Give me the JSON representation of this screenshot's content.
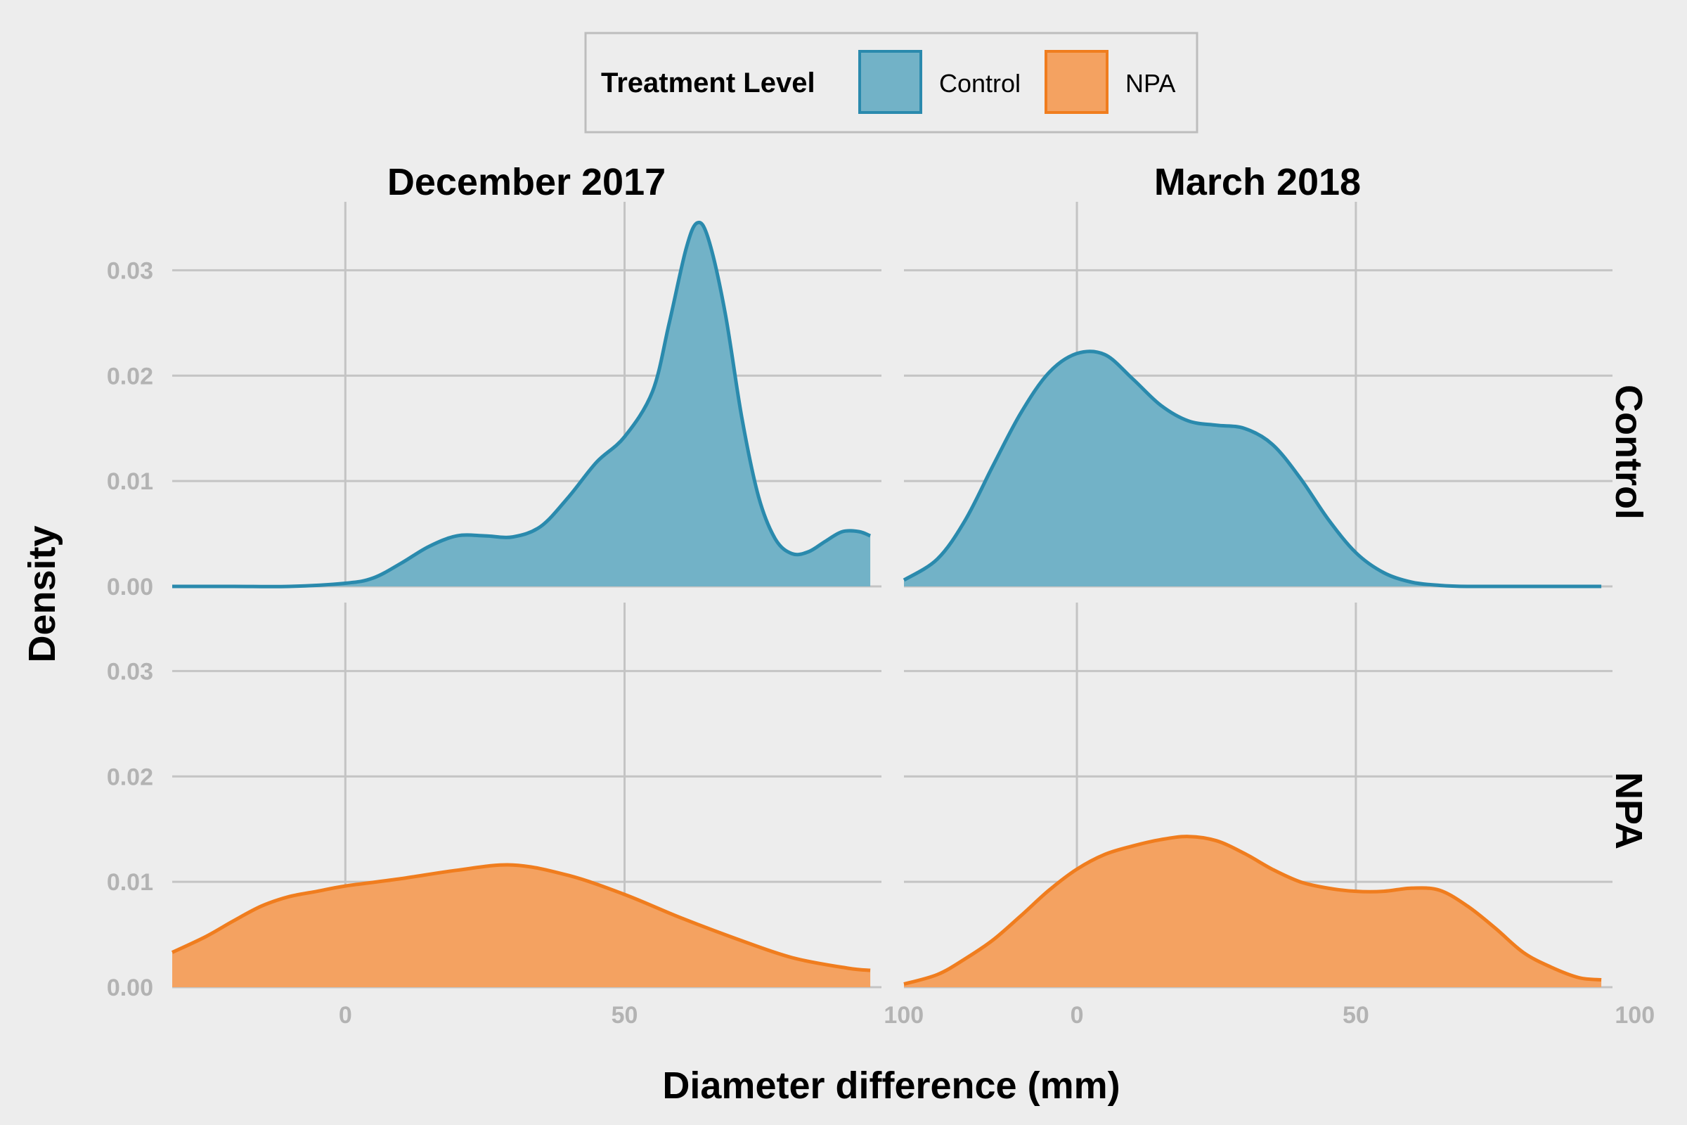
{
  "chart_data": {
    "type": "area",
    "subtype": "density",
    "title": "",
    "xlabel": "Diameter difference (mm)",
    "ylabel": "Density",
    "xlim": [
      -31,
      96
    ],
    "ylim": [
      0,
      0.0365
    ],
    "x_ticks": [
      0,
      50,
      100
    ],
    "y_ticks": [
      0,
      0.01,
      0.02,
      0.03
    ],
    "y_tick_labels": [
      "0.00",
      "0.01",
      "0.02",
      "0.03"
    ],
    "grid": true,
    "legend": {
      "title": "Treatment Level",
      "position": "top",
      "entries": [
        {
          "label": "Control",
          "fill": "#72b2c7",
          "stroke": "#2a8aad"
        },
        {
          "label": "NPA",
          "fill": "#f4a261",
          "stroke": "#f07d1e"
        }
      ]
    },
    "facet_columns": [
      "December 2017",
      "March 2018"
    ],
    "facet_rows": [
      "Control",
      "NPA"
    ],
    "panels": [
      {
        "row": "Control",
        "column": "December 2017",
        "series": "Control",
        "points": [
          [
            -31,
            0
          ],
          [
            -20,
            0
          ],
          [
            -10,
            0
          ],
          [
            0,
            0.0003
          ],
          [
            5,
            0.0008
          ],
          [
            10,
            0.0022
          ],
          [
            15,
            0.0038
          ],
          [
            20,
            0.0048
          ],
          [
            25,
            0.0048
          ],
          [
            30,
            0.0047
          ],
          [
            35,
            0.0057
          ],
          [
            40,
            0.0085
          ],
          [
            45,
            0.0118
          ],
          [
            50,
            0.0142
          ],
          [
            55,
            0.0185
          ],
          [
            58,
            0.025
          ],
          [
            61,
            0.032
          ],
          [
            63,
            0.0345
          ],
          [
            65,
            0.033
          ],
          [
            68,
            0.026
          ],
          [
            71,
            0.016
          ],
          [
            74,
            0.0085
          ],
          [
            77,
            0.0045
          ],
          [
            80,
            0.0031
          ],
          [
            83,
            0.0033
          ],
          [
            86,
            0.0043
          ],
          [
            89,
            0.0052
          ],
          [
            92,
            0.0052
          ],
          [
            94,
            0.0048
          ]
        ]
      },
      {
        "row": "Control",
        "column": "March 2018",
        "series": "Control",
        "points": [
          [
            -31,
            0.0006
          ],
          [
            -25,
            0.0026
          ],
          [
            -20,
            0.0063
          ],
          [
            -15,
            0.0115
          ],
          [
            -10,
            0.0165
          ],
          [
            -5,
            0.0203
          ],
          [
            0,
            0.0221
          ],
          [
            5,
            0.022
          ],
          [
            10,
            0.0197
          ],
          [
            15,
            0.0172
          ],
          [
            20,
            0.0157
          ],
          [
            25,
            0.0153
          ],
          [
            30,
            0.015
          ],
          [
            35,
            0.0135
          ],
          [
            40,
            0.0103
          ],
          [
            45,
            0.0064
          ],
          [
            50,
            0.0032
          ],
          [
            55,
            0.0013
          ],
          [
            60,
            0.0004
          ],
          [
            65,
            0.0001
          ],
          [
            70,
            0
          ],
          [
            80,
            0
          ],
          [
            90,
            0
          ],
          [
            94,
            0
          ]
        ]
      },
      {
        "row": "NPA",
        "column": "December 2017",
        "series": "NPA",
        "points": [
          [
            -31,
            0.0033
          ],
          [
            -25,
            0.0048
          ],
          [
            -20,
            0.0063
          ],
          [
            -15,
            0.0077
          ],
          [
            -10,
            0.0086
          ],
          [
            -5,
            0.0091
          ],
          [
            0,
            0.0096
          ],
          [
            10,
            0.0103
          ],
          [
            20,
            0.0111
          ],
          [
            30,
            0.0116
          ],
          [
            40,
            0.0106
          ],
          [
            50,
            0.0088
          ],
          [
            60,
            0.0066
          ],
          [
            70,
            0.0046
          ],
          [
            80,
            0.0028
          ],
          [
            90,
            0.0018
          ],
          [
            94,
            0.0016
          ]
        ]
      },
      {
        "row": "NPA",
        "column": "March 2018",
        "series": "NPA",
        "points": [
          [
            -31,
            0.0003
          ],
          [
            -25,
            0.0012
          ],
          [
            -20,
            0.0027
          ],
          [
            -15,
            0.0045
          ],
          [
            -10,
            0.0068
          ],
          [
            -5,
            0.0092
          ],
          [
            0,
            0.0112
          ],
          [
            5,
            0.0126
          ],
          [
            10,
            0.0134
          ],
          [
            15,
            0.014
          ],
          [
            20,
            0.0143
          ],
          [
            25,
            0.0139
          ],
          [
            30,
            0.0127
          ],
          [
            35,
            0.0112
          ],
          [
            40,
            0.01
          ],
          [
            45,
            0.0094
          ],
          [
            50,
            0.0091
          ],
          [
            55,
            0.0091
          ],
          [
            60,
            0.0094
          ],
          [
            65,
            0.0092
          ],
          [
            70,
            0.0077
          ],
          [
            75,
            0.0056
          ],
          [
            80,
            0.0033
          ],
          [
            85,
            0.0019
          ],
          [
            90,
            0.0009
          ],
          [
            94,
            0.0007
          ]
        ]
      }
    ]
  }
}
